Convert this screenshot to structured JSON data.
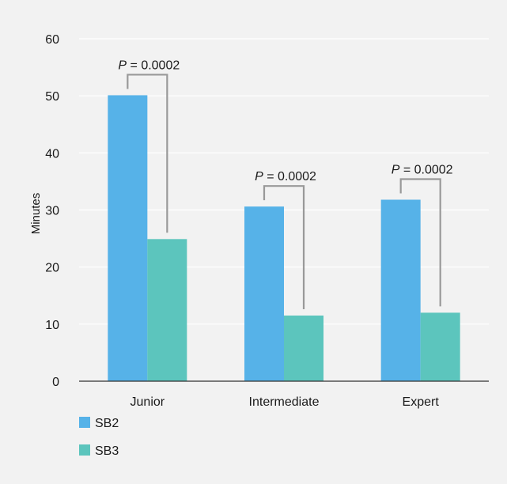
{
  "chart_data": {
    "type": "bar",
    "categories": [
      "Junior",
      "Intermediate",
      "Expert"
    ],
    "series": [
      {
        "name": "SB2",
        "color": "#56b2e8",
        "values": [
          50.1,
          30.6,
          31.8
        ]
      },
      {
        "name": "SB3",
        "color": "#5cc5bd",
        "values": [
          24.9,
          11.5,
          12.0
        ]
      }
    ],
    "xlabel": "",
    "ylabel": "Minutes",
    "ylim": [
      0,
      60
    ],
    "yticks": [
      0,
      10,
      20,
      30,
      40,
      50,
      60
    ],
    "grid": true,
    "legend_placement": "bottom-left",
    "annotations": [
      {
        "category": "Junior",
        "p_symbol": "P",
        "text": " = 0.0002"
      },
      {
        "category": "Intermediate",
        "p_symbol": "P",
        "text": " = 0.0002"
      },
      {
        "category": "Expert",
        "p_symbol": "P",
        "text": " = 0.0002"
      }
    ],
    "colors": {
      "background": "#f2f2f2",
      "grid": "#ffffff",
      "bracket": "#999999"
    }
  }
}
